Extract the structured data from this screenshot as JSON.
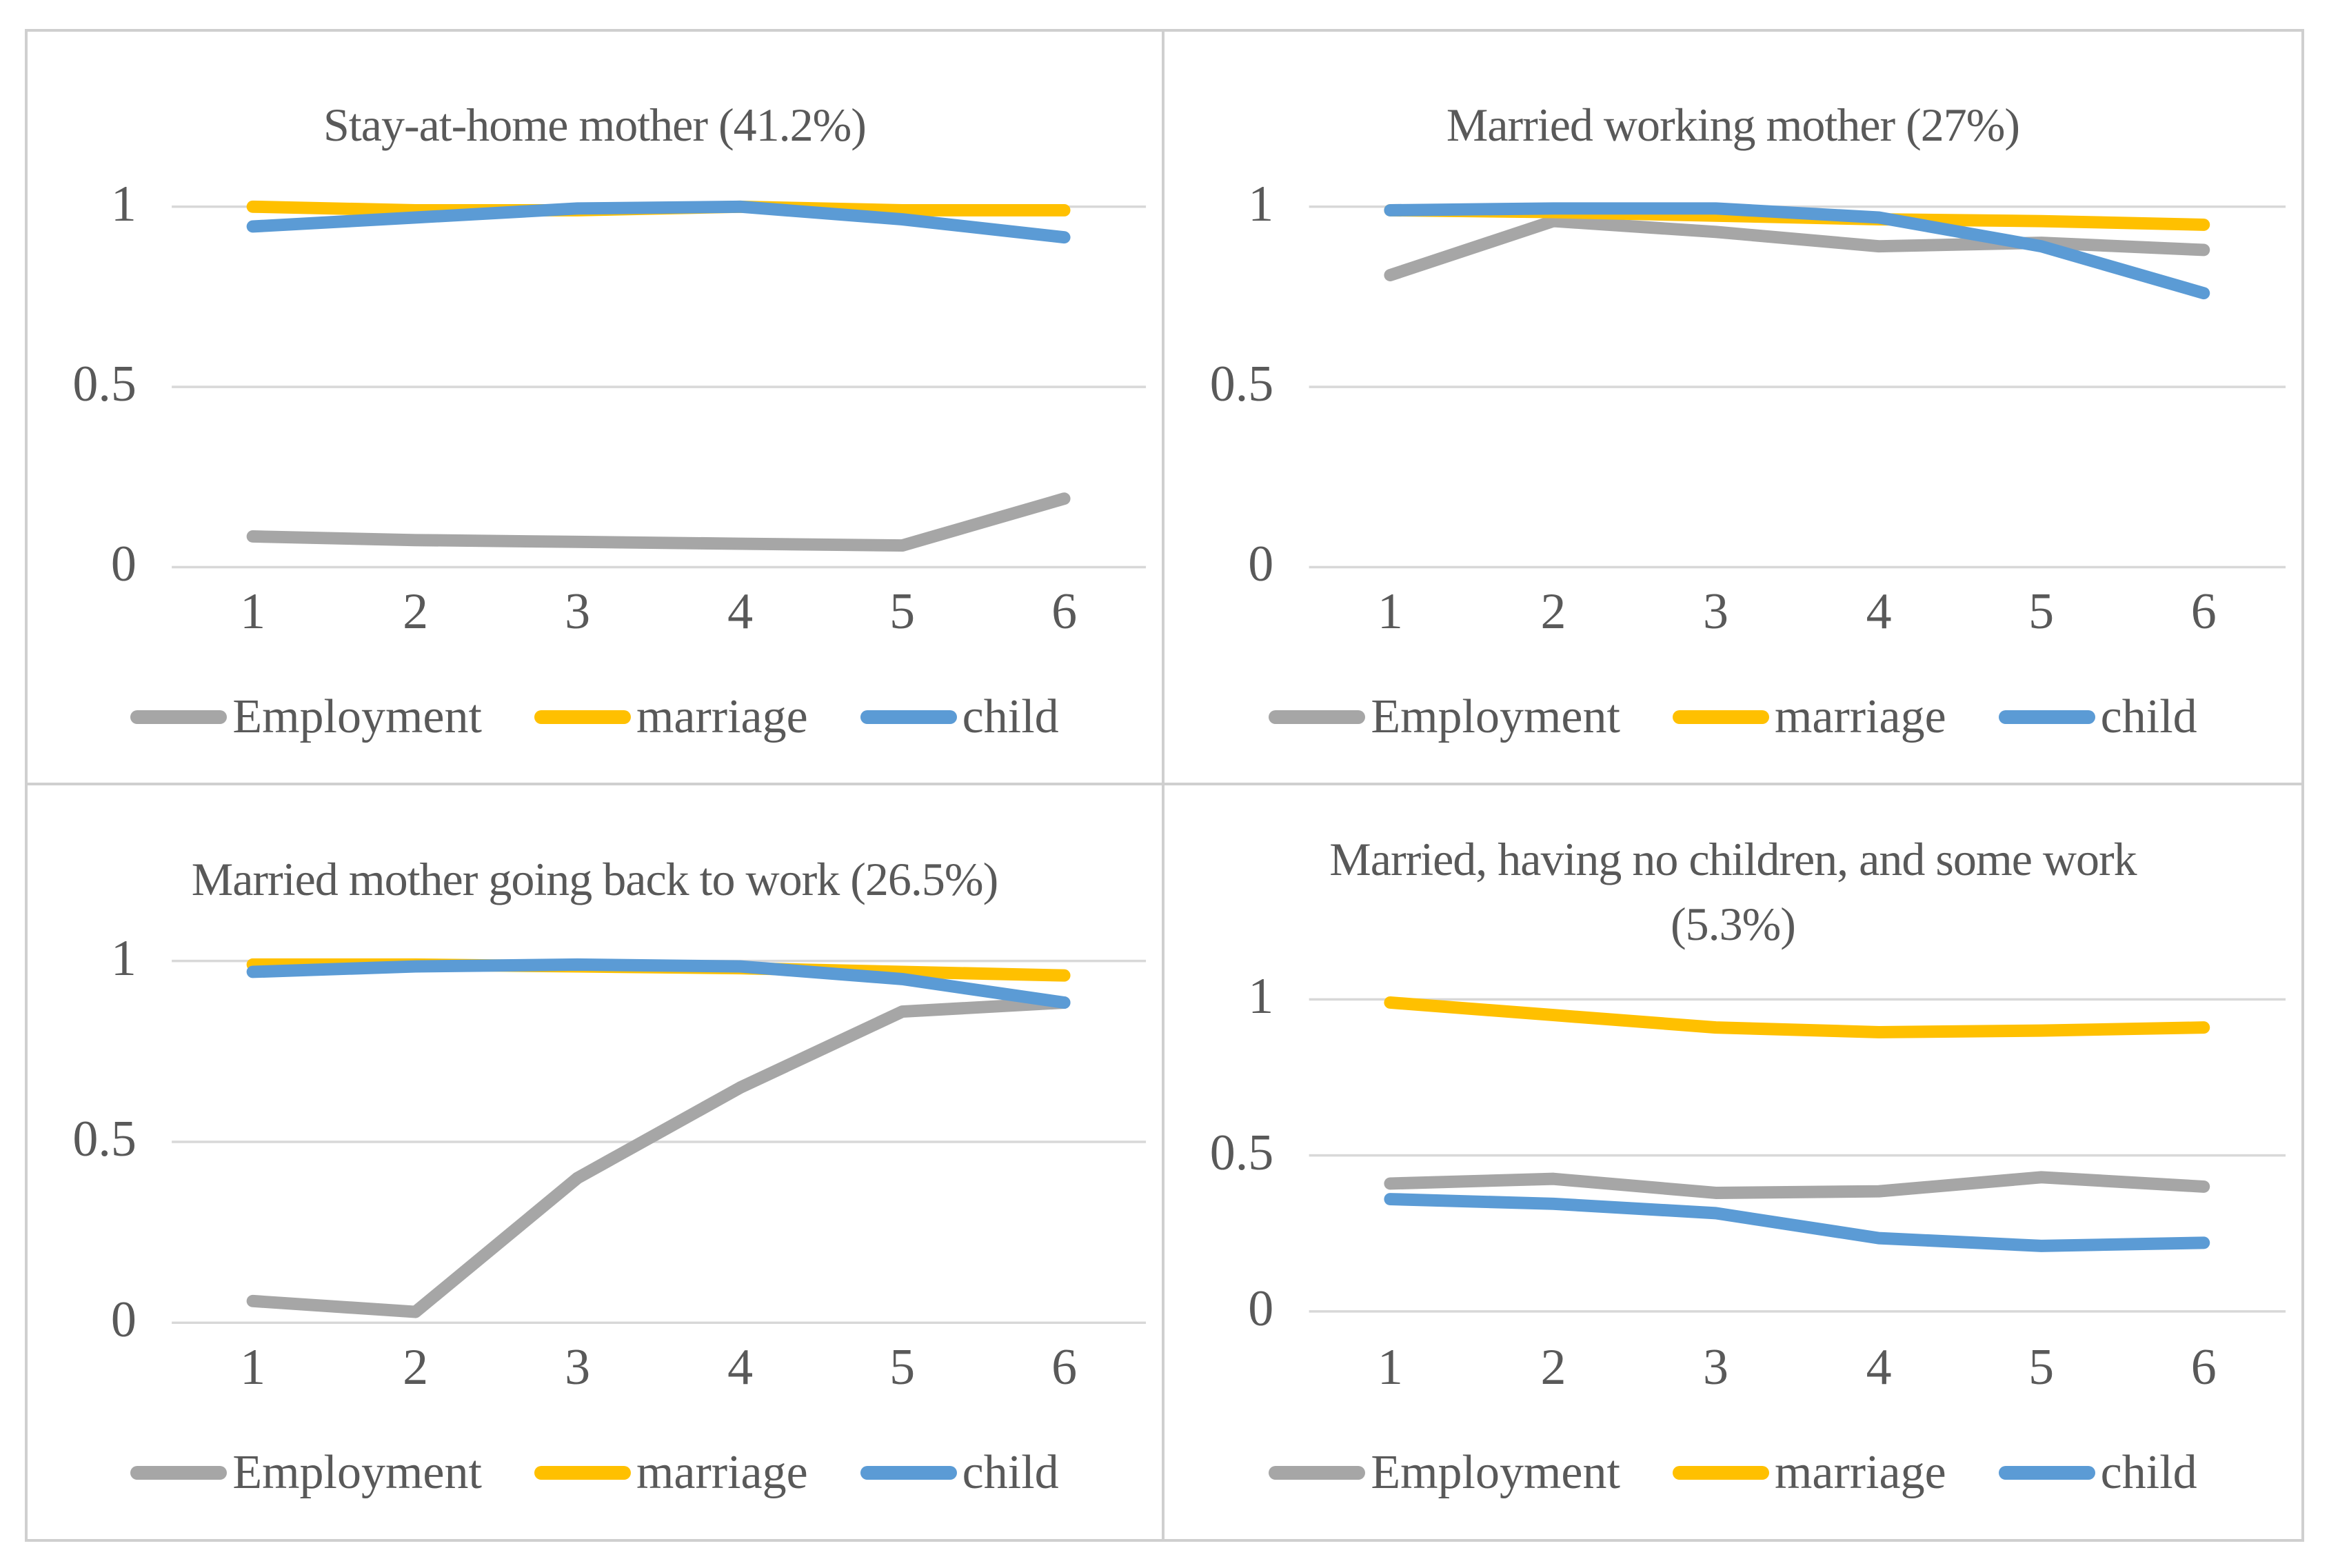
{
  "figure": {
    "background_color": "#ffffff",
    "frame_color": "#cfcfcf",
    "gridline_color": "#d8d8d8",
    "text_color": "#595959"
  },
  "chart_data": [
    {
      "type": "line",
      "title": "Stay-at-home mother (41.2%)",
      "x": [
        1,
        2,
        3,
        4,
        5,
        6
      ],
      "x_tick_labels": [
        "1",
        "2",
        "3",
        "4",
        "5",
        "6"
      ],
      "y_ticks": [
        1,
        0.5,
        0
      ],
      "y_tick_labels": [
        "1",
        "0.5",
        "0"
      ],
      "ylim": [
        0,
        1
      ],
      "grid": true,
      "legend_position": "bottom",
      "series": [
        {
          "name": "Employment",
          "color": "#a6a6a6",
          "values": [
            0.085,
            0.075,
            0.07,
            0.065,
            0.06,
            0.19
          ]
        },
        {
          "name": "marriage",
          "color": "#ffc000",
          "values": [
            1.0,
            0.99,
            0.99,
            1.0,
            0.99,
            0.99
          ]
        },
        {
          "name": "child",
          "color": "#5b9bd5",
          "values": [
            0.945,
            0.97,
            0.995,
            1.0,
            0.965,
            0.915
          ]
        }
      ]
    },
    {
      "type": "line",
      "title": "Married working mother (27%)",
      "x": [
        1,
        2,
        3,
        4,
        5,
        6
      ],
      "x_tick_labels": [
        "1",
        "2",
        "3",
        "4",
        "5",
        "6"
      ],
      "y_ticks": [
        1,
        0.5,
        0
      ],
      "y_tick_labels": [
        "1",
        "0.5",
        "0"
      ],
      "ylim": [
        0,
        1
      ],
      "grid": true,
      "legend_position": "bottom",
      "series": [
        {
          "name": "Employment",
          "color": "#a6a6a6",
          "values": [
            0.81,
            0.96,
            0.93,
            0.89,
            0.9,
            0.88
          ]
        },
        {
          "name": "marriage",
          "color": "#ffc000",
          "values": [
            0.99,
            0.985,
            0.975,
            0.965,
            0.96,
            0.95
          ]
        },
        {
          "name": "child",
          "color": "#5b9bd5",
          "values": [
            0.99,
            0.995,
            0.995,
            0.97,
            0.89,
            0.76
          ]
        }
      ]
    },
    {
      "type": "line",
      "title": "Married mother going back to work (26.5%)",
      "x": [
        1,
        2,
        3,
        4,
        5,
        6
      ],
      "x_tick_labels": [
        "1",
        "2",
        "3",
        "4",
        "5",
        "6"
      ],
      "y_ticks": [
        1,
        0.5,
        0
      ],
      "y_tick_labels": [
        "1",
        "0.5",
        "0"
      ],
      "ylim": [
        0,
        1
      ],
      "grid": true,
      "legend_position": "bottom",
      "series": [
        {
          "name": "Employment",
          "color": "#a6a6a6",
          "values": [
            0.06,
            0.03,
            0.4,
            0.65,
            0.86,
            0.885
          ]
        },
        {
          "name": "marriage",
          "color": "#ffc000",
          "values": [
            0.99,
            0.99,
            0.985,
            0.98,
            0.97,
            0.96
          ]
        },
        {
          "name": "child",
          "color": "#5b9bd5",
          "values": [
            0.97,
            0.985,
            0.99,
            0.985,
            0.95,
            0.885
          ]
        }
      ]
    },
    {
      "type": "line",
      "title": "Married, having no children, and some work (5.3%)",
      "x": [
        1,
        2,
        3,
        4,
        5,
        6
      ],
      "x_tick_labels": [
        "1",
        "2",
        "3",
        "4",
        "5",
        "6"
      ],
      "y_ticks": [
        1,
        0.5,
        0
      ],
      "y_tick_labels": [
        "1",
        "0.5",
        "0"
      ],
      "ylim": [
        0,
        1
      ],
      "grid": true,
      "legend_position": "bottom",
      "series": [
        {
          "name": "Employment",
          "color": "#a6a6a6",
          "values": [
            0.41,
            0.425,
            0.38,
            0.385,
            0.43,
            0.4
          ]
        },
        {
          "name": "marriage",
          "color": "#ffc000",
          "values": [
            0.99,
            0.95,
            0.91,
            0.895,
            0.9,
            0.91
          ]
        },
        {
          "name": "child",
          "color": "#5b9bd5",
          "values": [
            0.36,
            0.345,
            0.315,
            0.235,
            0.21,
            0.22
          ]
        }
      ]
    }
  ]
}
